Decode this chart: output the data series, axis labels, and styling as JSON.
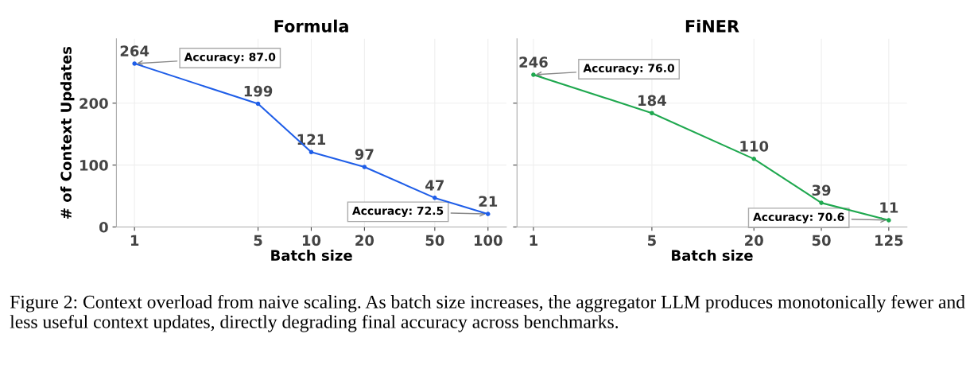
{
  "chart_data": [
    {
      "type": "line",
      "title": "Formula",
      "xlabel": "Batch size",
      "ylabel": "# of Context Updates",
      "log": "x",
      "x": [
        1,
        5,
        10,
        20,
        50,
        100
      ],
      "series": [
        {
          "color": "#1f5ee8",
          "values": [
            264,
            199,
            121,
            97,
            47,
            21
          ]
        }
      ],
      "xlim": [
        0.79,
        127
      ],
      "xticks": [
        1,
        5,
        10,
        20,
        50,
        100
      ],
      "ylim": [
        0,
        304
      ],
      "yticks": [
        0,
        100,
        200
      ],
      "grid": true,
      "marker": "circle",
      "line_style": "solid",
      "data_labels": true,
      "annotations": [
        {
          "text": "Accuracy: 87.0",
          "x": 1,
          "y": 264
        },
        {
          "text": "Accuracy: 72.5",
          "x": 100,
          "y": 21
        },
        "Figure 2: Context overload from naive scaling. As batch size increases, the aggregator LLM produces monotonically fewer and less useful context updates, directly degrading final accuracy across benchmarks."
      ]
    },
    {
      "type": "line",
      "title": "FiNER",
      "xlabel": "Batch size",
      "log": "x",
      "x": [
        1,
        5,
        20,
        50,
        125
      ],
      "series": [
        {
          "color": "#1fa84f",
          "values": [
            246,
            184,
            110,
            39,
            11
          ]
        }
      ],
      "xlim": [
        0.8,
        160
      ],
      "xticks": [
        1,
        5,
        20,
        50,
        125
      ],
      "ylim": [
        0,
        304
      ],
      "yticks": [
        0,
        100,
        200
      ],
      "tick_labels": "x",
      "grid": true,
      "marker": "circle",
      "line_style": "solid",
      "data_labels": true,
      "annotations": [
        {
          "text": "Accuracy: 76.0",
          "x": 1,
          "y": 246
        },
        {
          "text": "Accuracy: 70.6",
          "x": 125,
          "y": 11
        }
      ]
    }
  ]
}
